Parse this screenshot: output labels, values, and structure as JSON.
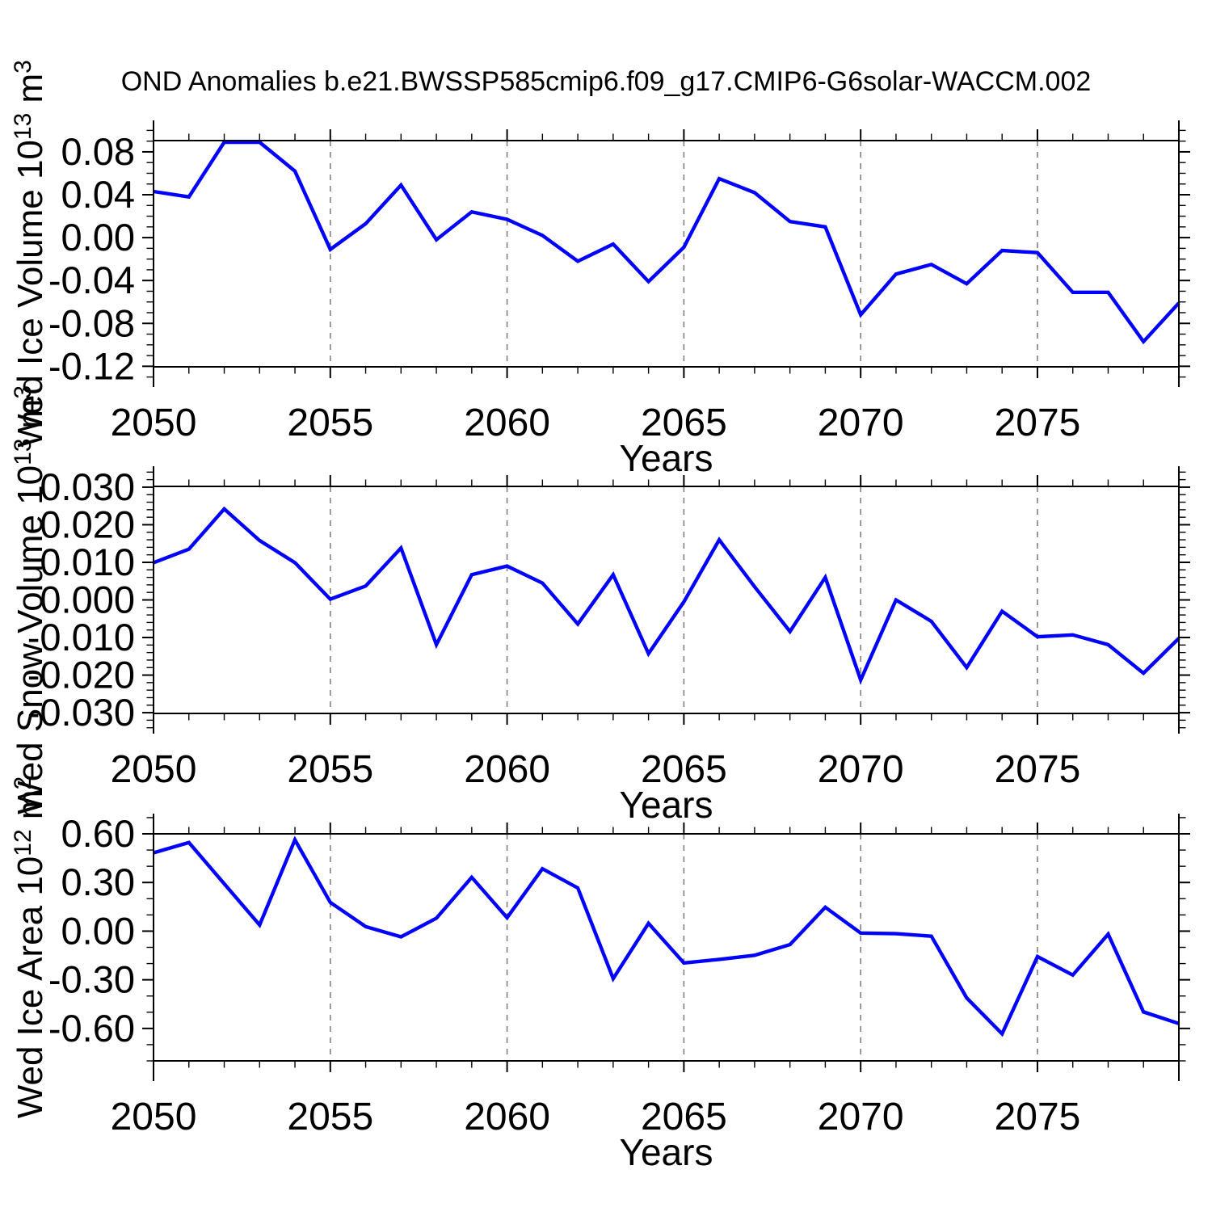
{
  "title": "OND Anomalies b.e21.BWSSP585cmip6.f09_g17.CMIP6-G6solar-WACCM.002",
  "xlabel": "Years",
  "colors": {
    "line": "#0000ff",
    "frame": "#000000",
    "grid": "#808080",
    "background": "#ffffff"
  },
  "years": [
    2050,
    2051,
    2052,
    2053,
    2054,
    2055,
    2056,
    2057,
    2058,
    2059,
    2060,
    2061,
    2062,
    2063,
    2064,
    2065,
    2066,
    2067,
    2068,
    2069,
    2070,
    2071,
    2072,
    2073,
    2074,
    2075,
    2076,
    2077,
    2078,
    2079
  ],
  "x_axis": {
    "range": [
      2050,
      2079
    ],
    "major_tick_years": [
      2050,
      2055,
      2060,
      2065,
      2070,
      2075
    ],
    "major_tick_labels": [
      "2050",
      "2055",
      "2060",
      "2065",
      "2070",
      "2075"
    ],
    "minor_tick_step": 1,
    "grid_years": [
      2055,
      2060,
      2065,
      2070,
      2075
    ]
  },
  "chart_data": [
    {
      "type": "line",
      "name": "ice-volume",
      "ylabel_parts": [
        {
          "t": "Wed Ice Volume 10"
        },
        {
          "t": "13",
          "sup": true
        },
        {
          "t": " m"
        },
        {
          "t": "3",
          "sup": true
        }
      ],
      "ylabel_plain": "Wed Ice Volume 10^13 m^3",
      "xlabel": "Years",
      "ylim": [
        -0.1205,
        0.0905
      ],
      "ytick_values": [
        0.08,
        0.04,
        0.0,
        -0.04,
        -0.08,
        -0.12
      ],
      "ytick_labels": [
        "0.08",
        "0.04",
        "0.00",
        "-0.04",
        "-0.08",
        "-0.12"
      ],
      "y_minor_step": 0.01,
      "y_major_step": 0.04,
      "grid": "x-dashed",
      "legend": "none",
      "values": [
        0.043,
        0.038,
        0.089,
        0.089,
        0.062,
        -0.011,
        0.013,
        0.049,
        -0.002,
        0.024,
        0.017,
        0.002,
        -0.022,
        -0.006,
        -0.041,
        -0.009,
        0.055,
        0.042,
        0.015,
        0.01,
        -0.072,
        -0.034,
        -0.025,
        -0.043,
        -0.012,
        -0.014,
        -0.051,
        -0.051,
        -0.097,
        -0.061
      ]
    },
    {
      "type": "line",
      "name": "snow-volume",
      "ylabel_parts": [
        {
          "t": "Wed Snow Volume 10"
        },
        {
          "t": "13",
          "sup": true
        },
        {
          "t": " m"
        },
        {
          "t": "3",
          "sup": true
        }
      ],
      "ylabel_plain": "Wed Snow Volume 10^13 m^3",
      "xlabel": "Years",
      "ylim": [
        -0.0302,
        0.0302
      ],
      "ytick_values": [
        0.03,
        0.02,
        0.01,
        0.0,
        -0.01,
        -0.02,
        -0.03
      ],
      "ytick_labels": [
        "0.030",
        "0.020",
        "0.010",
        "0.000",
        "-0.010",
        "-0.020",
        "-0.030"
      ],
      "y_minor_step": 0.002,
      "y_major_step": 0.01,
      "grid": "x-dashed",
      "legend": "none",
      "values": [
        0.0099,
        0.0135,
        0.0242,
        0.0158,
        0.0099,
        0.0002,
        0.0037,
        0.0138,
        -0.0119,
        0.0067,
        0.009,
        0.0045,
        -0.0064,
        0.0067,
        -0.0143,
        -0.0005,
        0.016,
        0.0035,
        -0.0084,
        0.006,
        -0.0213,
        0.0,
        -0.0057,
        -0.018,
        -0.003,
        -0.0098,
        -0.0093,
        -0.0119,
        -0.0195,
        -0.0102
      ]
    },
    {
      "type": "line",
      "name": "ice-area",
      "ylabel_parts": [
        {
          "t": "Wed Ice Area 10"
        },
        {
          "t": "12",
          "sup": true
        },
        {
          "t": " m"
        },
        {
          "t": "2",
          "sup": true
        }
      ],
      "ylabel_plain": "Wed Ice Area 10^12 m^2",
      "xlabel": "Years",
      "ylim": [
        -0.8,
        0.6
      ],
      "ytick_values": [
        0.6,
        0.3,
        0.0,
        -0.3,
        -0.6
      ],
      "ytick_labels": [
        "0.60",
        "0.30",
        "0.00",
        "-0.30",
        "-0.60"
      ],
      "y_minor_step": 0.1,
      "y_major_step": 0.3,
      "grid": "x-dashed",
      "legend": "none",
      "values": [
        0.483,
        0.546,
        0.292,
        0.038,
        0.563,
        0.177,
        0.028,
        -0.035,
        0.08,
        0.332,
        0.083,
        0.385,
        0.266,
        -0.293,
        0.048,
        -0.196,
        -0.174,
        -0.149,
        -0.083,
        0.147,
        -0.012,
        -0.016,
        -0.031,
        -0.412,
        -0.633,
        -0.157,
        -0.271,
        -0.019,
        -0.498,
        -0.57
      ]
    }
  ]
}
